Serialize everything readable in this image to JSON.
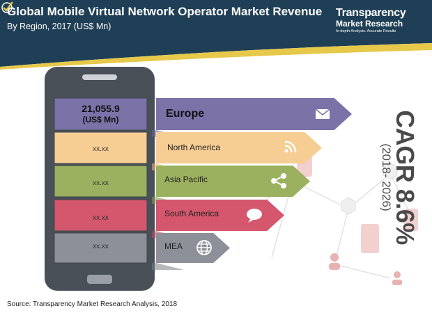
{
  "header": {
    "title": "Global Mobile Virtual Network Operator Market Revenue",
    "subtitle": "By Region, 2017 (US$ Mn)",
    "logo_line1": "Transparency",
    "logo_line2": "Market Research",
    "logo_tagline": "In-depth Analysis. Accurate Results"
  },
  "colors": {
    "header_bg": "#1f3f56",
    "accent_yellow": "#e6c84a",
    "phone_body": "#4a5058",
    "europe": "#7b72a8",
    "north_america": "#f6cd93",
    "asia_pacific": "#9bb15f",
    "south_america": "#d4576d",
    "mea": "#8d9098"
  },
  "chart_data": {
    "type": "bar",
    "title": "Global Mobile Virtual Network Operator Market Revenue",
    "subtitle": "By Region, 2017 (US$ Mn)",
    "categories": [
      "Europe",
      "North America",
      "Asia Pacific",
      "South America",
      "MEA"
    ],
    "value_labels": [
      "21,055.9",
      "xx.xx",
      "xx.xx",
      "xx.xx",
      "xx.xx"
    ],
    "value_unit": "(US$ Mn)",
    "icons": [
      "envelope-icon",
      "rss-icon",
      "share-icon",
      "speech-bubble-icon",
      "globe-icon"
    ],
    "cagr": "CAGR 8.6%",
    "cagr_period": "(2018- 2026)"
  },
  "footer": {
    "source": "Source: Transparency Market Research Analysis, 2018"
  }
}
